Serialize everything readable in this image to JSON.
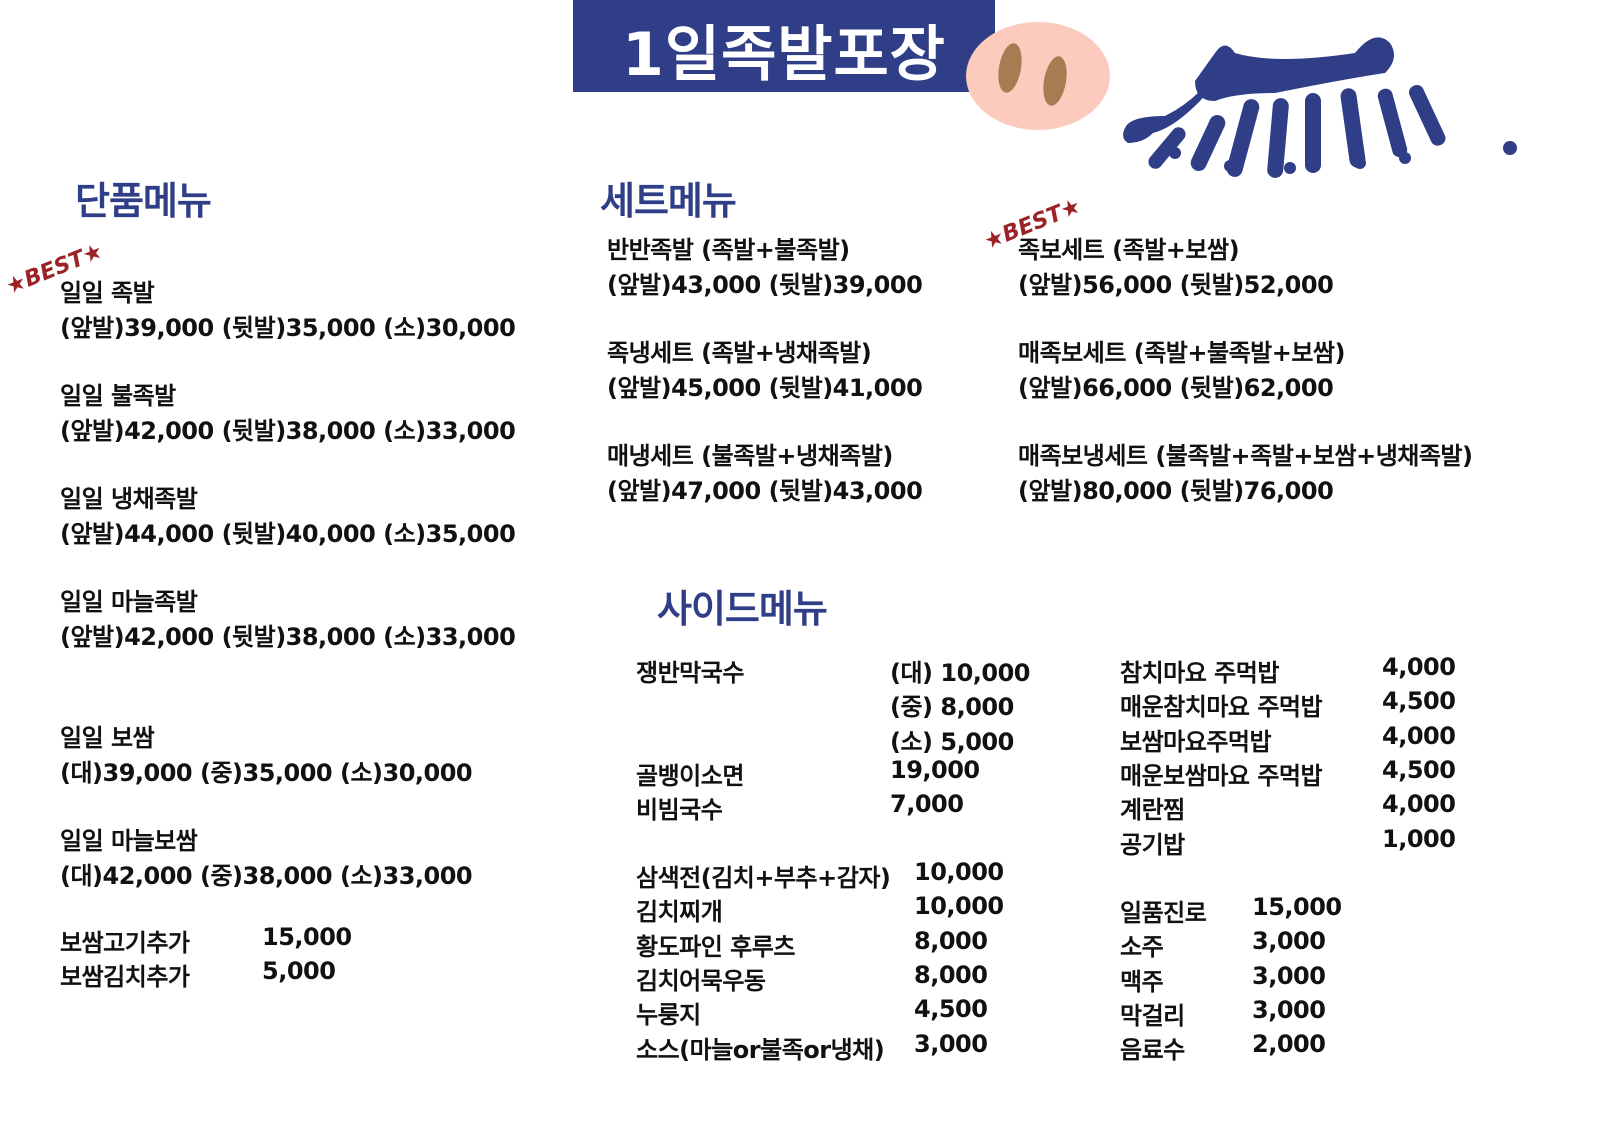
{
  "title": "1일족발포장",
  "colors": {
    "brand": "#2f3e87",
    "best": "#9b2226",
    "nose": "#fccbbd",
    "nostril": "#a67c52"
  },
  "best_label": "★BEST★",
  "single": {
    "heading": "단품메뉴",
    "items": [
      {
        "name": "일일 족발",
        "price": "(앞발)39,000  (뒷발)35,000  (소)30,000",
        "best": true
      },
      {
        "name": "일일 불족발",
        "price": "(앞발)42,000  (뒷발)38,000  (소)33,000"
      },
      {
        "name": "일일 냉채족발",
        "price": "(앞발)44,000  (뒷발)40,000  (소)35,000"
      },
      {
        "name": "일일 마늘족발",
        "price": "(앞발)42,000  (뒷발)38,000  (소)33,000"
      },
      {
        "name": "일일 보쌈",
        "price": "(대)39,000 (중)35,000 (소)30,000"
      },
      {
        "name": "일일 마늘보쌈",
        "price": "(대)42,000 (중)38,000 (소)33,000"
      }
    ],
    "extras": [
      {
        "name": "보쌈고기추가",
        "price": "15,000"
      },
      {
        "name": "보쌈김치추가",
        "price": "5,000"
      }
    ]
  },
  "set": {
    "heading": "세트메뉴",
    "items": [
      {
        "name": "반반족발 (족발+불족발)",
        "price": "(앞발)43,000  (뒷발)39,000"
      },
      {
        "name": "족냉세트 (족발+냉채족발)",
        "price": "(앞발)45,000  (뒷발)41,000"
      },
      {
        "name": "매냉세트 (불족발+냉채족발)",
        "price": "(앞발)47,000  (뒷발)43,000"
      },
      {
        "name": "족보세트 (족발+보쌈)",
        "price": "(앞발)56,000  (뒷발)52,000",
        "best": true
      },
      {
        "name": "매족보세트 (족발+불족발+보쌈)",
        "price": "(앞발)66,000  (뒷발)62,000"
      },
      {
        "name": "매족보냉세트 (불족발+족발+보쌈+냉채족발)",
        "price": "(앞발)80,000  (뒷발)76,000"
      }
    ]
  },
  "side": {
    "heading": "사이드메뉴",
    "noodles": [
      {
        "name": "쟁반막국수",
        "price": "(대) 10,000"
      },
      {
        "name": "",
        "price": "(중) 8,000"
      },
      {
        "name": "",
        "price": "(소) 5,000"
      },
      {
        "name": "골뱅이소면",
        "price": "19,000"
      },
      {
        "name": "비빔국수",
        "price": "7,000"
      }
    ],
    "dishes": [
      {
        "name": "삼색전(김치+부추+감자)",
        "price": "10,000"
      },
      {
        "name": "김치찌개",
        "price": "10,000"
      },
      {
        "name": "황도파인 후루츠",
        "price": "8,000"
      },
      {
        "name": "김치어묵우동",
        "price": "8,000"
      },
      {
        "name": "누룽지",
        "price": "4,500"
      },
      {
        "name": "소스(마늘or불족or냉채)",
        "price": "3,000"
      }
    ],
    "rice": [
      {
        "name": "참치마요 주먹밥",
        "price": "4,000"
      },
      {
        "name": "매운참치마요 주먹밥",
        "price": "4,500"
      },
      {
        "name": "보쌈마요주먹밥",
        "price": "4,000"
      },
      {
        "name": "매운보쌈마요 주먹밥",
        "price": "4,500"
      },
      {
        "name": "계란찜",
        "price": "4,000"
      },
      {
        "name": "공기밥",
        "price": "1,000"
      }
    ],
    "drinks": [
      {
        "name": "일품진로",
        "price": "15,000"
      },
      {
        "name": "소주",
        "price": "3,000"
      },
      {
        "name": "맥주",
        "price": "3,000"
      },
      {
        "name": "막걸리",
        "price": "3,000"
      },
      {
        "name": "음료수",
        "price": "2,000"
      }
    ]
  }
}
